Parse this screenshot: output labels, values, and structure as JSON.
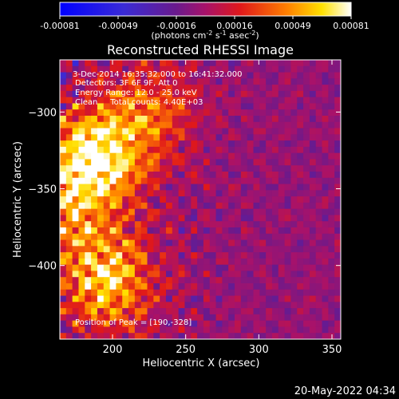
{
  "colorbar": {
    "ticks": [
      "-0.00081",
      "-0.00049",
      "-0.00016",
      "0.00016",
      "0.00049",
      "0.00081"
    ],
    "units": [
      "(photons cm",
      "-2",
      " s",
      "-1",
      " asec",
      "-2",
      ")"
    ],
    "range": [
      -0.00081,
      0.00081
    ]
  },
  "annotations": [
    " 3-Dec-2014 16:35:32.000 to 16:41:32.000",
    "Detectors: 3F 6F 9F, Att 0",
    "Energy Range: 12.0 - 25.0 keV",
    "Clean     Total counts: 4.40E+03"
  ],
  "peak_text": "Position of Peak = [190,-328]",
  "footer_date": "20-May-2022 04:34",
  "chart_data": {
    "type": "heatmap",
    "title": "Reconstructed RHESSI Image",
    "xlabel": "Heliocentric X (arcsec)",
    "ylabel": "Heliocentric Y (arcsec)",
    "xlim": [
      164,
      356
    ],
    "ylim": [
      -448,
      -266
    ],
    "xticks": [
      200,
      250,
      300,
      350
    ],
    "yticks": [
      -300,
      -350,
      -400
    ],
    "colormap": "rainbow-red-yellow-white",
    "grid": false,
    "peak": {
      "x": 190,
      "y": -328
    },
    "sources": [
      {
        "x": 190,
        "y": -328,
        "value": 0.00081
      },
      {
        "x": 196,
        "y": -409,
        "value": 0.00066
      },
      {
        "x": 172,
        "y": -360,
        "value": 0.00045
      },
      {
        "x": 226,
        "y": -300,
        "value": 0.00035
      }
    ]
  }
}
